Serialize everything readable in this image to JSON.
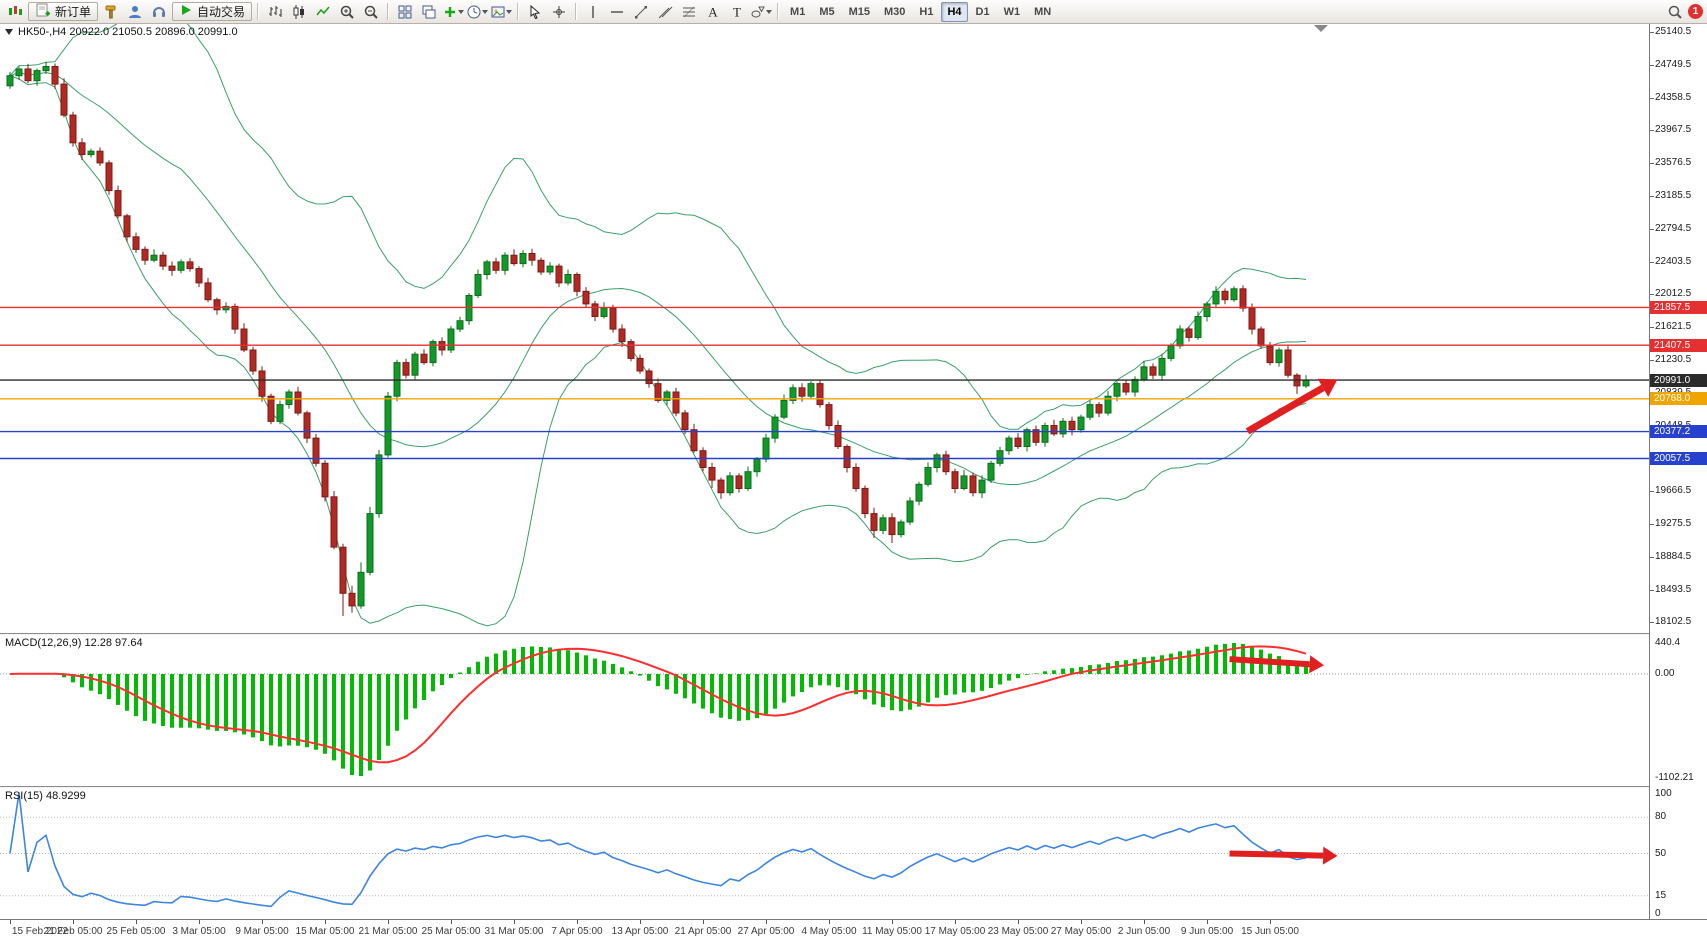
{
  "toolbar": {
    "new_order_label": "新订单",
    "autotrading_label": "自动交易",
    "timeframes": [
      "M1",
      "M5",
      "M15",
      "M30",
      "H1",
      "H4",
      "D1",
      "W1",
      "MN"
    ],
    "active_timeframe": "H4",
    "notification_count": "1"
  },
  "chart": {
    "header": "HK50-,H4 20922.0 21050.5 20896.0 20991.0"
  },
  "macd": {
    "label": "MACD(12,26,9) 12.28 97.64"
  },
  "rsi": {
    "label": "RSI(15) 48.9299"
  },
  "chart_data": {
    "type": "candlestick",
    "symbol": "HK50-",
    "timeframe": "H4",
    "last_ohlc": {
      "open": 20922.0,
      "high": 21050.5,
      "low": 20896.0,
      "close": 20991.0
    },
    "price_axis": {
      "min": 17977,
      "max": 25236,
      "tick_labels": [
        25140.5,
        24749.5,
        24358.5,
        23967.5,
        23576.5,
        23185.5,
        22794.5,
        22403.5,
        22012.5,
        21621.5,
        21230.5,
        20839.5,
        20448.5,
        20057.5,
        19666.5,
        19275.5,
        18884.5,
        18493.5,
        18102.5
      ]
    },
    "first_open": 24500,
    "closes": [
      24620,
      24700,
      24560,
      24680,
      24730,
      24520,
      24150,
      23820,
      23680,
      23720,
      23580,
      23250,
      22950,
      22700,
      22550,
      22420,
      22480,
      22350,
      22300,
      22400,
      22320,
      22150,
      21950,
      21830,
      21870,
      21600,
      21350,
      21100,
      20800,
      20500,
      20700,
      20850,
      20600,
      20300,
      20000,
      19600,
      19000,
      18450,
      18300,
      18700,
      19400,
      20100,
      20800,
      21200,
      21050,
      21300,
      21200,
      21450,
      21350,
      21600,
      21700,
      22000,
      22250,
      22400,
      22300,
      22480,
      22380,
      22500,
      22420,
      22280,
      22350,
      22150,
      22250,
      22050,
      21900,
      21750,
      21850,
      21600,
      21450,
      21250,
      21100,
      20950,
      20750,
      20850,
      20600,
      20400,
      20150,
      19950,
      19800,
      19650,
      19850,
      19700,
      19900,
      20050,
      20300,
      20550,
      20750,
      20900,
      20800,
      20950,
      20700,
      20450,
      20200,
      19950,
      19700,
      19400,
      19200,
      19350,
      19150,
      19300,
      19550,
      19750,
      19950,
      20100,
      19900,
      19700,
      19850,
      19650,
      19800,
      20000,
      20150,
      20300,
      20200,
      20400,
      20250,
      20450,
      20350,
      20500,
      20400,
      20550,
      20700,
      20600,
      20800,
      20950,
      20850,
      21000,
      21150,
      21050,
      21250,
      21400,
      21600,
      21500,
      21750,
      21900,
      22050,
      21950,
      22080,
      21850,
      21600,
      21400,
      21200,
      21350,
      21050,
      20922,
      20991
    ],
    "wick_up": [
      45,
      30,
      60,
      25,
      55,
      35,
      70,
      40,
      55,
      30,
      45,
      30,
      60,
      25,
      50,
      35,
      70,
      40,
      55,
      30,
      45,
      30,
      60,
      25,
      50,
      35,
      70,
      40,
      55,
      30,
      45,
      30,
      60,
      25,
      50,
      35,
      70,
      40,
      90,
      120,
      80,
      60,
      50,
      35,
      45,
      30,
      60,
      25,
      50,
      35,
      45,
      30,
      60,
      25,
      50,
      35,
      70,
      40,
      55,
      30,
      45,
      30,
      60,
      25,
      50,
      35,
      70,
      40,
      55,
      30,
      45,
      30,
      60,
      25,
      50,
      35,
      70,
      40,
      55,
      30,
      45,
      30,
      60,
      25,
      50,
      35,
      70,
      40,
      55,
      30,
      45,
      30,
      60,
      25,
      50,
      35,
      70,
      40,
      55,
      30,
      45,
      30,
      60,
      25,
      50,
      35,
      70,
      40,
      55,
      30,
      45,
      30,
      60,
      25,
      50,
      35,
      70,
      40,
      55,
      30,
      45,
      30,
      60,
      25,
      50,
      35,
      70,
      40,
      55,
      30,
      45,
      30,
      60,
      25,
      60,
      35,
      30,
      40,
      55,
      30,
      45,
      30,
      60,
      25,
      59.5
    ],
    "wick_down": [
      35,
      50,
      30,
      60,
      40,
      55,
      25,
      45,
      65,
      35,
      35,
      50,
      30,
      60,
      40,
      55,
      25,
      45,
      65,
      35,
      35,
      50,
      30,
      60,
      40,
      55,
      25,
      45,
      65,
      35,
      35,
      50,
      30,
      60,
      40,
      55,
      25,
      270,
      80,
      35,
      35,
      50,
      30,
      60,
      40,
      55,
      25,
      45,
      65,
      35,
      35,
      50,
      30,
      60,
      40,
      55,
      25,
      45,
      65,
      35,
      35,
      50,
      30,
      60,
      40,
      55,
      25,
      45,
      65,
      35,
      35,
      50,
      30,
      60,
      40,
      55,
      25,
      45,
      95,
      75,
      35,
      50,
      30,
      60,
      40,
      55,
      25,
      45,
      65,
      35,
      35,
      50,
      30,
      60,
      40,
      55,
      90,
      45,
      100,
      35,
      35,
      50,
      30,
      60,
      40,
      55,
      25,
      45,
      65,
      35,
      35,
      50,
      30,
      60,
      40,
      55,
      25,
      45,
      65,
      35,
      35,
      50,
      30,
      60,
      40,
      55,
      25,
      45,
      65,
      35,
      35,
      50,
      30,
      60,
      40,
      55,
      25,
      45,
      65,
      35,
      35,
      50,
      30,
      95,
      26
    ],
    "x_labels": [
      "15 Feb 2022",
      "21 Feb 05:00",
      "25 Feb 05:00",
      "3 Mar 05:00",
      "9 Mar 05:00",
      "15 Mar 05:00",
      "21 Mar 05:00",
      "25 Mar 05:00",
      "31 Mar 05:00",
      "7 Apr 05:00",
      "13 Apr 05:00",
      "21 Apr 05:00",
      "27 Apr 05:00",
      "4 May 05:00",
      "11 May 05:00",
      "17 May 05:00",
      "23 May 05:00",
      "27 May 05:00",
      "2 Jun 05:00",
      "9 Jun 05:00",
      "15 Jun 05:00"
    ],
    "x_label_step": 7,
    "hlines": [
      {
        "price": 21857.5,
        "color": "#e43030",
        "label": "21857.5"
      },
      {
        "price": 21407.5,
        "color": "#e43030",
        "label": "21407.5"
      },
      {
        "price": 20991.0,
        "color": "#2b2b2b",
        "label": "20991.0"
      },
      {
        "price": 20768.0,
        "color": "#efa400",
        "label": "20768.0"
      },
      {
        "price": 20377.2,
        "color": "#2741cf",
        "label": "20377.2"
      },
      {
        "price": 20057.5,
        "color": "#2741cf",
        "label": "20057.5"
      }
    ],
    "bollinger": {
      "period": 20,
      "deviation": 2,
      "color": "#3aa06a"
    },
    "macd_axis": [
      "440.4",
      "0.00",
      "-1102.21"
    ],
    "macd_zero_fraction": 0.26,
    "rsi_axis": [
      100,
      80,
      50,
      15,
      0
    ],
    "rsi_levels": [
      80,
      50,
      15
    ],
    "colors": {
      "up": "#119a28",
      "up_dark": "#0b6e1c",
      "down": "#b22822",
      "down_dark": "#7d1a16",
      "macd_histogram": "#00bb00",
      "macd_signal": "#ff2e2e",
      "rsi_line": "#3d85e0",
      "arrow": "#e02020"
    },
    "annotations": {
      "main": {
        "from_i": 137.5,
        "from_price": 20380,
        "to_i": 147.5,
        "to_price": 21000,
        "width": 7
      },
      "macd": {
        "from_i": 135.5,
        "to_i": 146,
        "from_frac": 0.16,
        "to_frac": 0.2,
        "width": 6
      },
      "rsi": {
        "from_i": 135.5,
        "to_i": 147.5,
        "from_value": 50,
        "to_value": 48,
        "width": 6
      }
    }
  }
}
